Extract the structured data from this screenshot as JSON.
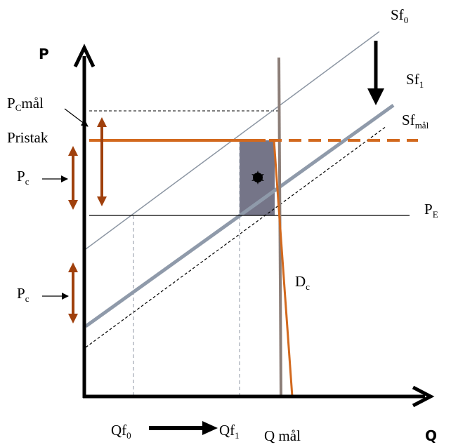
{
  "axes": {
    "y_label": "P",
    "x_label": "Q"
  },
  "labels": {
    "sf0": {
      "base": "Sf",
      "sub": "0"
    },
    "sf1": {
      "base": "Sf",
      "sub": "1"
    },
    "sfmal": {
      "base": "Sf",
      "sub": "mål"
    },
    "pe": {
      "base": "P",
      "sub": "E"
    },
    "dc": {
      "base": "D",
      "sub": "c"
    },
    "pc_mal": {
      "base": "P",
      "sub": "C",
      "tail": "mål"
    },
    "pristak": "Pristak",
    "pc_upper": {
      "base": "P",
      "sub": "c"
    },
    "pc_lower": {
      "base": "P",
      "sub": "c"
    },
    "qf0": {
      "base": "Qf",
      "sub": "0"
    },
    "qf1": {
      "base": "Qf",
      "sub": "1"
    },
    "q_mal": "Q mål"
  },
  "colors": {
    "orange": "#D2691E",
    "brown_arrow": "#A0400C",
    "supply_thin": "#8C96A3",
    "supply_thick": "#8F9AAA",
    "shaded_area": "#6E6E82",
    "quota_line": "#8C7E78",
    "axis": "#000000"
  }
}
